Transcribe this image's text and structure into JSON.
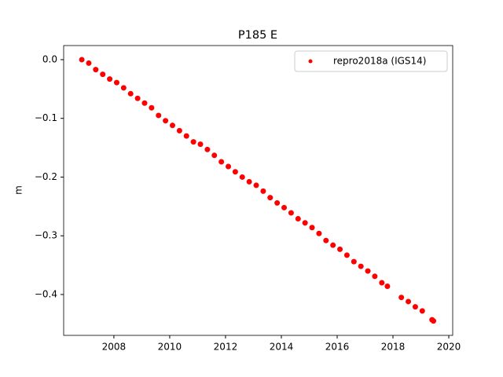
{
  "chart_data": {
    "type": "scatter",
    "title": "P185 E",
    "ylabel": "m",
    "legend": "upper right",
    "series": [
      {
        "name": "repro2018a (IGS14)",
        "color": "#ff0000",
        "x": [
          2006.85,
          2007.1,
          2007.35,
          2007.6,
          2007.85,
          2008.1,
          2008.35,
          2008.6,
          2008.85,
          2009.1,
          2009.35,
          2009.6,
          2009.85,
          2010.1,
          2010.35,
          2010.6,
          2010.85,
          2011.1,
          2011.35,
          2011.6,
          2011.85,
          2012.1,
          2012.35,
          2012.6,
          2012.85,
          2013.1,
          2013.35,
          2013.6,
          2013.85,
          2014.1,
          2014.35,
          2014.6,
          2014.85,
          2015.1,
          2015.35,
          2015.6,
          2015.85,
          2016.1,
          2016.35,
          2016.6,
          2016.85,
          2017.1,
          2017.35,
          2017.6,
          2017.8,
          2018.3,
          2018.55,
          2018.8,
          2019.05,
          2019.4,
          2019.45
        ],
        "values": [
          0.0,
          -0.006,
          -0.017,
          -0.025,
          -0.033,
          -0.039,
          -0.048,
          -0.058,
          -0.066,
          -0.074,
          -0.082,
          -0.095,
          -0.104,
          -0.112,
          -0.121,
          -0.13,
          -0.14,
          -0.144,
          -0.153,
          -0.163,
          -0.174,
          -0.182,
          -0.191,
          -0.2,
          -0.208,
          -0.214,
          -0.224,
          -0.235,
          -0.244,
          -0.252,
          -0.261,
          -0.271,
          -0.278,
          -0.286,
          -0.296,
          -0.308,
          -0.316,
          -0.323,
          -0.333,
          -0.344,
          -0.352,
          -0.36,
          -0.369,
          -0.38,
          -0.386,
          -0.405,
          -0.412,
          -0.421,
          -0.428,
          -0.443,
          -0.445
        ]
      }
    ],
    "xlim": [
      2006.2,
      2020.14
    ],
    "ylim": [
      -0.4696,
      0.024
    ],
    "xticks": [
      2008,
      2010,
      2012,
      2014,
      2016,
      2018,
      2020
    ],
    "yticks": [
      {
        "value": 0,
        "label": "0.0"
      },
      {
        "value": -0.1,
        "label": "−0.1"
      },
      {
        "value": -0.2,
        "label": "−0.2"
      },
      {
        "value": -0.3,
        "label": "−0.3"
      },
      {
        "value": -0.4,
        "label": "−0.4"
      }
    ]
  }
}
